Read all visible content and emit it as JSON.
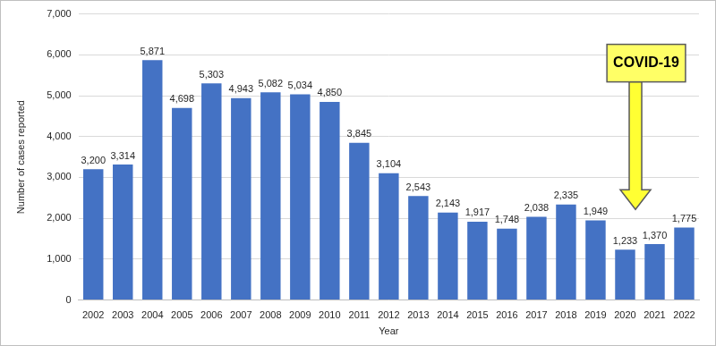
{
  "chart_data": {
    "type": "bar",
    "x_label": "Year",
    "y_label": "Number of cases reported",
    "categories": [
      "2002",
      "2003",
      "2004",
      "2005",
      "2006",
      "2007",
      "2008",
      "2009",
      "2010",
      "2011",
      "2012",
      "2013",
      "2014",
      "2015",
      "2016",
      "2017",
      "2018",
      "2019",
      "2020",
      "2021",
      "2022"
    ],
    "values": [
      3200,
      3314,
      5871,
      4698,
      5303,
      4943,
      5082,
      5034,
      4850,
      3845,
      3104,
      2543,
      2143,
      1917,
      1748,
      2038,
      2335,
      1949,
      1233,
      1370,
      1775
    ],
    "value_labels": [
      "3,200",
      "3,314",
      "5,871",
      "4,698",
      "5,303",
      "4,943",
      "5,082",
      "5,034",
      "4,850",
      "3,845",
      "3,104",
      "2,543",
      "2,143",
      "1,917",
      "1,748",
      "2,038",
      "2,335",
      "1,949",
      "1,233",
      "1,370",
      "1,775"
    ],
    "data_labels": true,
    "color": "#4472c4",
    "ylim": [
      0,
      7000
    ],
    "yticks": [
      0,
      {
        "value": 1000,
        "label": "1,000"
      },
      {
        "value": 2000,
        "label": "2,000"
      },
      {
        "value": 3000,
        "label": "3,000"
      },
      {
        "value": 4000,
        "label": "4,000"
      },
      {
        "value": 5000,
        "label": "5,000"
      },
      {
        "value": 6000,
        "label": "6,000"
      },
      {
        "value": 7000,
        "label": "7,000"
      }
    ],
    "grid": true,
    "annotations": [
      {
        "text": "COVID-19",
        "x": "2020"
      }
    ]
  }
}
